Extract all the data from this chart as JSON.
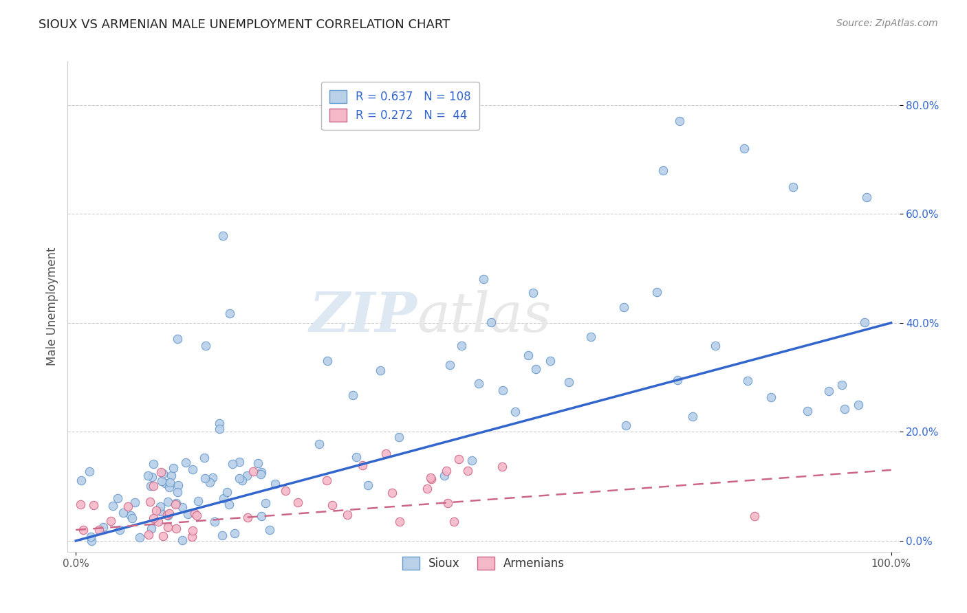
{
  "title": "SIOUX VS ARMENIAN MALE UNEMPLOYMENT CORRELATION CHART",
  "source": "Source: ZipAtlas.com",
  "ylabel": "Male Unemployment",
  "sioux_R": 0.637,
  "sioux_N": 108,
  "armenian_R": 0.272,
  "armenian_N": 44,
  "sioux_color": "#b8d0e8",
  "sioux_edge_color": "#6699cc",
  "armenian_color": "#f5b8c8",
  "armenian_edge_color": "#cc6688",
  "sioux_line_color": "#3366cc",
  "armenian_line_color": "#cc6688",
  "legend_label_sioux": "Sioux",
  "legend_label_armenian": "Armenians",
  "watermark_zip": "ZIP",
  "watermark_atlas": "atlas",
  "background_color": "#ffffff",
  "title_color": "#222222",
  "grid_color": "#cccccc",
  "tick_label_color": "#3366cc",
  "sioux_line_intercept": 0.0,
  "sioux_line_slope": 0.4,
  "armenian_line_intercept": 0.02,
  "armenian_line_slope": 0.11
}
